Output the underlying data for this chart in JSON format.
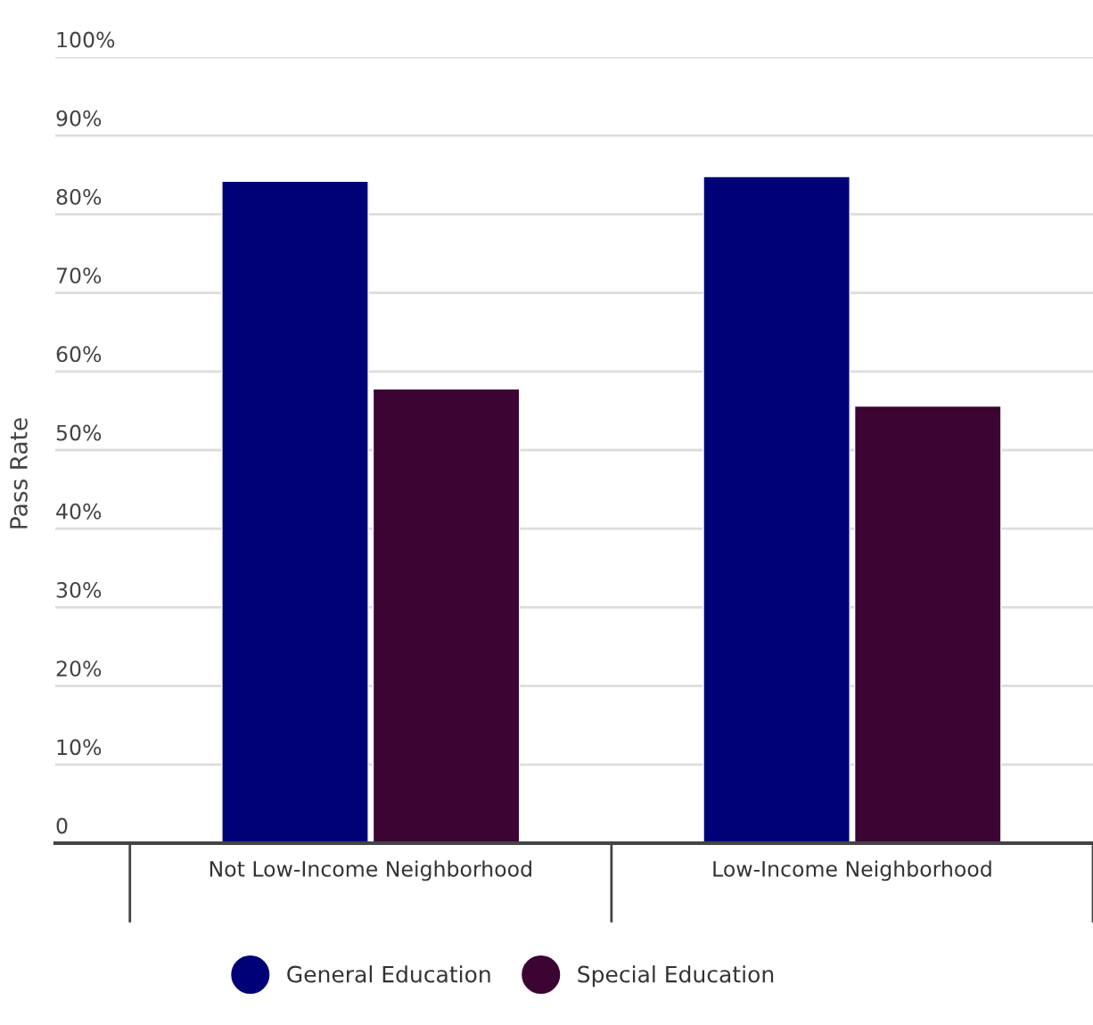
{
  "chart_data": {
    "type": "bar",
    "ylabel": "Pass Rate",
    "categories": [
      "Not Low-Income Neighborhood",
      "Low-Income Neighborhood"
    ],
    "series": [
      {
        "name": "General Education",
        "color": "#000077",
        "values": [
          84.2,
          84.8
        ]
      },
      {
        "name": "Special Education",
        "color": "#3b0433",
        "values": [
          57.8,
          55.6
        ]
      }
    ],
    "ylim": [
      0,
      100
    ],
    "yticks": [
      0,
      {
        "value": 10,
        "label": "10%"
      },
      {
        "value": 20,
        "label": "20%"
      },
      {
        "value": 30,
        "label": "30%"
      },
      {
        "value": 40,
        "label": "40%"
      },
      {
        "value": 50,
        "label": "50%"
      },
      {
        "value": 60,
        "label": "60%"
      },
      {
        "value": 70,
        "label": "70%"
      },
      {
        "value": 80,
        "label": "80%"
      },
      {
        "value": 90,
        "label": "90%"
      },
      {
        "value": 100,
        "label": "100%"
      }
    ],
    "grid": "y",
    "legend": "bottom"
  }
}
